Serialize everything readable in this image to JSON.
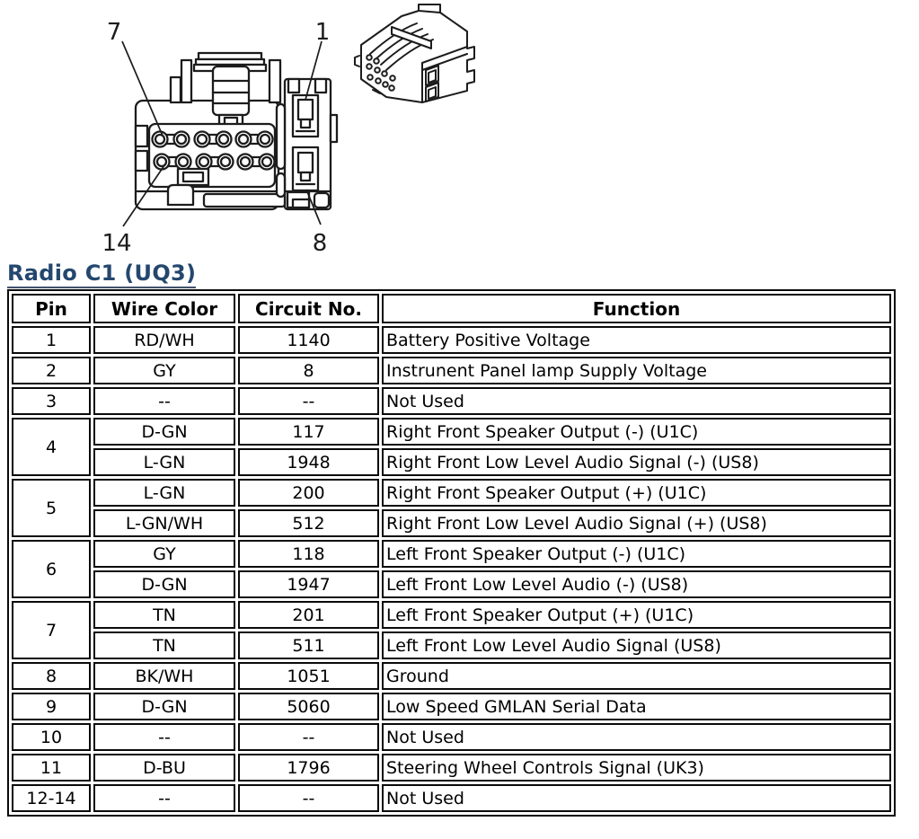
{
  "page_title": "Radio C1 (UQ3)",
  "colors": {
    "title": "#24476e",
    "title_underline": "#41526b",
    "line_art": "#1c1c1c",
    "table_border": "#0a0a0a",
    "background": "#ffffff",
    "text": "#000000"
  },
  "connector_diagram": {
    "callouts": {
      "top_left": "7",
      "top_right": "1",
      "bottom_left": "14",
      "bottom_right": "8"
    }
  },
  "pinout_table": {
    "headers": [
      "Pin",
      "Wire Color",
      "Circuit No.",
      "Function"
    ],
    "rows": [
      {
        "pin": "1",
        "entries": [
          {
            "wire_color": "RD/WH",
            "circuit_no": "1140",
            "function": "Battery Positive Voltage"
          }
        ]
      },
      {
        "pin": "2",
        "entries": [
          {
            "wire_color": "GY",
            "circuit_no": "8",
            "function": "Instrunent Panel lamp Supply Voltage"
          }
        ]
      },
      {
        "pin": "3",
        "entries": [
          {
            "wire_color": "--",
            "circuit_no": "--",
            "function": "Not Used"
          }
        ]
      },
      {
        "pin": "4",
        "entries": [
          {
            "wire_color": "D-GN",
            "circuit_no": "117",
            "function": "Right Front Speaker Output (-) (U1C)"
          },
          {
            "wire_color": "L-GN",
            "circuit_no": "1948",
            "function": "Right Front Low Level Audio Signal (-) (US8)"
          }
        ]
      },
      {
        "pin": "5",
        "entries": [
          {
            "wire_color": "L-GN",
            "circuit_no": "200",
            "function": "Right Front Speaker Output (+) (U1C)"
          },
          {
            "wire_color": "L-GN/WH",
            "circuit_no": "512",
            "function": "Right Front Low Level Audio Signal (+) (US8)"
          }
        ]
      },
      {
        "pin": "6",
        "entries": [
          {
            "wire_color": "GY",
            "circuit_no": "118",
            "function": "Left Front Speaker Output (-) (U1C)"
          },
          {
            "wire_color": "D-GN",
            "circuit_no": "1947",
            "function": "Left Front Low Level Audio (-) (US8)"
          }
        ]
      },
      {
        "pin": "7",
        "entries": [
          {
            "wire_color": "TN",
            "circuit_no": "201",
            "function": "Left Front Speaker Output (+) (U1C)"
          },
          {
            "wire_color": "TN",
            "circuit_no": "511",
            "function": "Left Front Low Level Audio Signal (US8)"
          }
        ]
      },
      {
        "pin": "8",
        "entries": [
          {
            "wire_color": "BK/WH",
            "circuit_no": "1051",
            "function": "Ground"
          }
        ]
      },
      {
        "pin": "9",
        "entries": [
          {
            "wire_color": "D-GN",
            "circuit_no": "5060",
            "function": "Low Speed GMLAN Serial Data"
          }
        ]
      },
      {
        "pin": "10",
        "entries": [
          {
            "wire_color": "--",
            "circuit_no": "--",
            "function": "Not Used"
          }
        ]
      },
      {
        "pin": "11",
        "entries": [
          {
            "wire_color": "D-BU",
            "circuit_no": "1796",
            "function": "Steering Wheel Controls Signal (UK3)"
          }
        ]
      },
      {
        "pin": "12-14",
        "entries": [
          {
            "wire_color": "--",
            "circuit_no": "--",
            "function": "Not Used"
          }
        ]
      }
    ]
  }
}
